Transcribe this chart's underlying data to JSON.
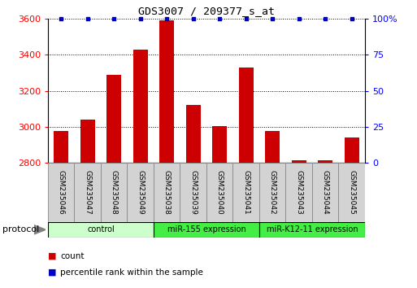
{
  "title": "GDS3007 / 209377_s_at",
  "samples": [
    "GSM235046",
    "GSM235047",
    "GSM235048",
    "GSM235049",
    "GSM235038",
    "GSM235039",
    "GSM235040",
    "GSM235041",
    "GSM235042",
    "GSM235043",
    "GSM235044",
    "GSM235045"
  ],
  "counts": [
    2975,
    3040,
    3290,
    3430,
    3590,
    3120,
    3005,
    3330,
    2975,
    2815,
    2815,
    2940
  ],
  "percentile_ranks": [
    100,
    100,
    100,
    100,
    100,
    100,
    100,
    100,
    100,
    100,
    100,
    100
  ],
  "groups": [
    {
      "label": "control",
      "start": 0,
      "end": 4,
      "color": "#ccffcc"
    },
    {
      "label": "miR-155 expression",
      "start": 4,
      "end": 8,
      "color": "#44ee44"
    },
    {
      "label": "miR-K12-11 expression",
      "start": 8,
      "end": 12,
      "color": "#44ee44"
    }
  ],
  "bar_color": "#cc0000",
  "scatter_color": "#0000cc",
  "ylim_left": [
    2800,
    3600
  ],
  "ylim_right": [
    0,
    100
  ],
  "yticks_left": [
    2800,
    3000,
    3200,
    3400,
    3600
  ],
  "yticks_right": [
    0,
    25,
    50,
    75,
    100
  ],
  "ytick_labels_right": [
    "0",
    "25",
    "50",
    "75",
    "100%"
  ],
  "ytick_labels_left": [
    "2800",
    "3000",
    "3200",
    "3400",
    "3600"
  ],
  "legend_count_label": "count",
  "legend_percentile_label": "percentile rank within the sample",
  "protocol_label": "protocol",
  "background_color": "#ffffff",
  "label_bg": "#d3d3d3",
  "bar_width": 0.55
}
